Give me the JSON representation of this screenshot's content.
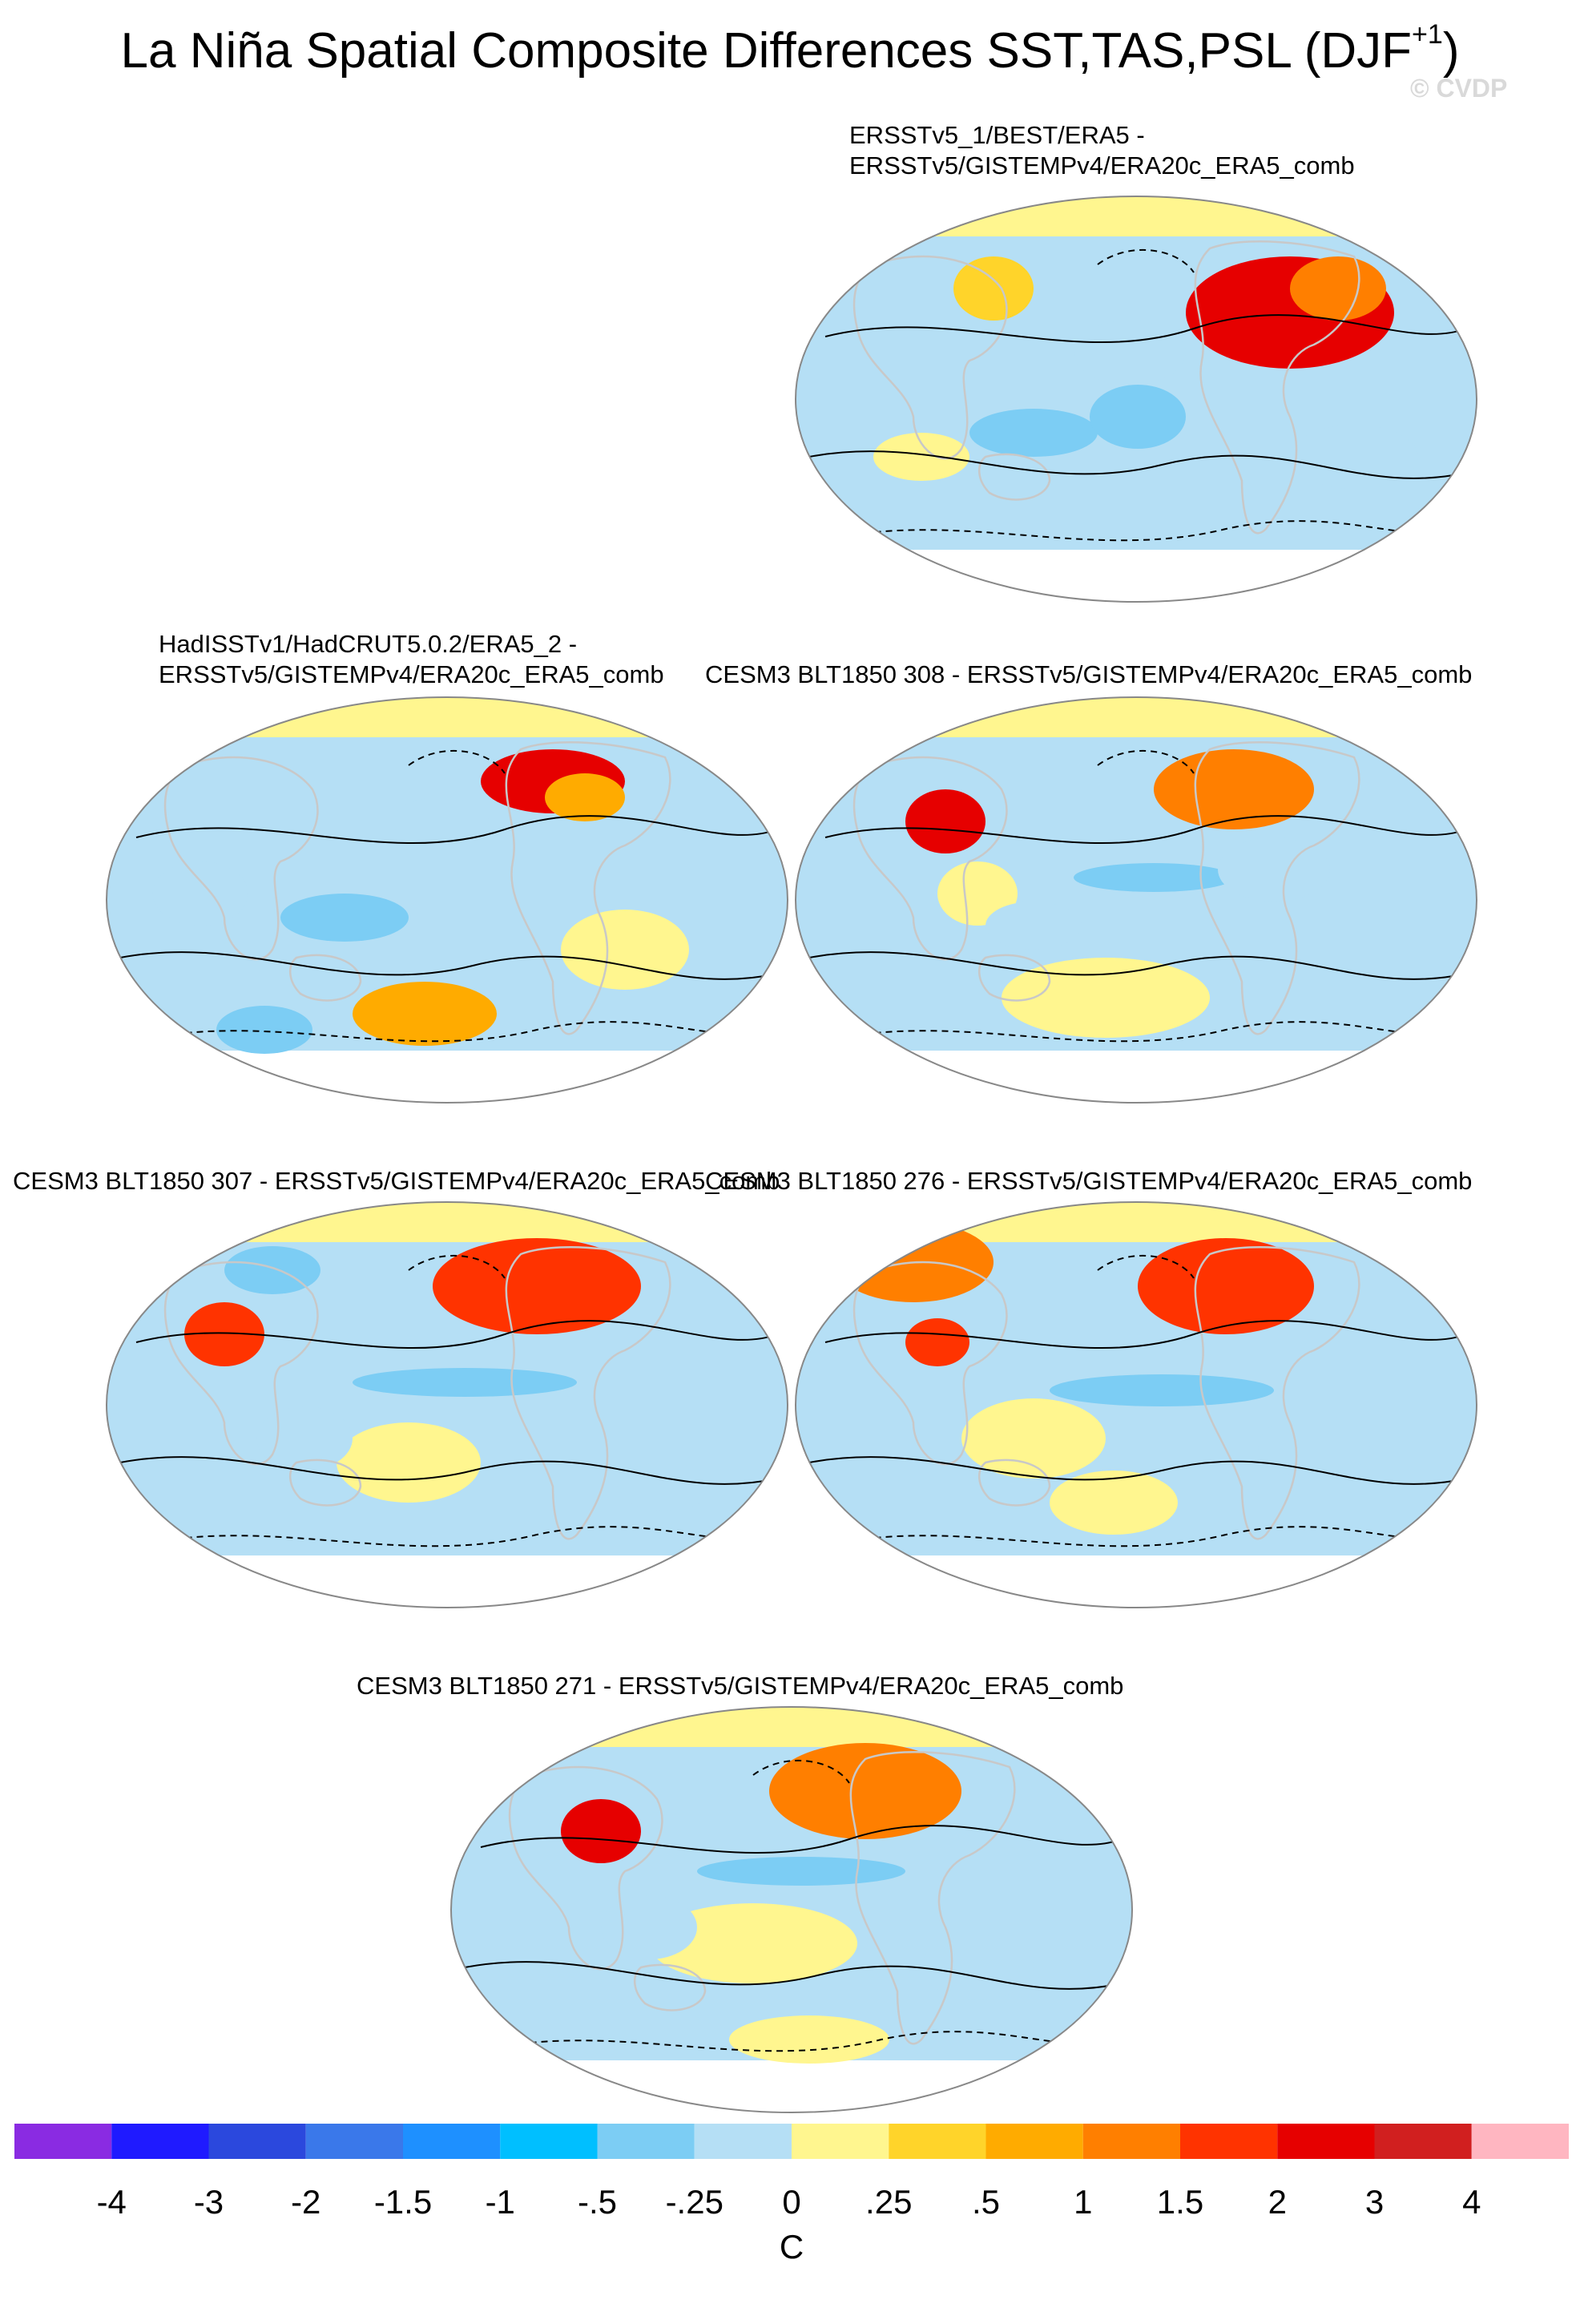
{
  "chart_data": {
    "type": "heatmap",
    "title": "La Niña Spatial Composite Differences SST,TAS,PSL (DJF",
    "title_superscript": "+1",
    "title_close": ")",
    "watermark": "© CVDP",
    "panels": [
      {
        "id": "p1",
        "title_lines": [
          "ERSSTv5_1/BEST/ERA5 -",
          "ERSSTv5/GISTEMPv4/ERA20c_ERA5_comb"
        ]
      },
      {
        "id": "p2",
        "title_lines": [
          "HadISSTv1/HadCRUT5.0.2/ERA5_2 -",
          "ERSSTv5/GISTEMPv4/ERA20c_ERA5_comb"
        ]
      },
      {
        "id": "p3",
        "title_lines": [
          "CESM3 BLT1850 308 - ERSSTv5/GISTEMPv4/ERA20c_ERA5_comb"
        ]
      },
      {
        "id": "p4",
        "title_lines": [
          "CESM3 BLT1850 307 - ERSSTv5/GISTEMPv4/ERA20c_ERA5_comb"
        ]
      },
      {
        "id": "p5",
        "title_lines": [
          "CESM3 BLT1850 276 - ERSSTv5/GISTEMPv4/ERA20c_ERA5_comb"
        ]
      },
      {
        "id": "p6",
        "title_lines": [
          "CESM3 BLT1850 271 - ERSSTv5/GISTEMPv4/ERA20c_ERA5_comb"
        ]
      }
    ],
    "colorbar": {
      "unit_label": "C",
      "labels": [
        "-4",
        "-3",
        "-2",
        "-1.5",
        "-1",
        "-.5",
        "-.25",
        "0",
        ".25",
        ".5",
        "1",
        "1.5",
        "2",
        "3",
        "4"
      ],
      "colors": [
        "#8a2be2",
        "#1f1aff",
        "#2b48dd",
        "#3a78ea",
        "#1e90ff",
        "#00bfff",
        "#7ccdf4",
        "#b5dff5",
        "#fff68f",
        "#ffd42a",
        "#ffab00",
        "#ff7f00",
        "#ff3300",
        "#e60000",
        "#d11f1f",
        "#ffb6c1"
      ]
    }
  }
}
